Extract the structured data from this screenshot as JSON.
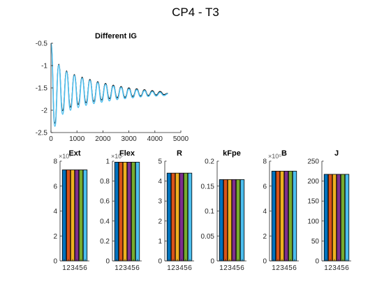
{
  "figure": {
    "suptitle": "CP4 - T3"
  },
  "chart_data": [
    {
      "type": "line",
      "title": "Different IG",
      "xlabel": "",
      "ylabel": "",
      "xlim": [
        0,
        5000
      ],
      "ylim": [
        -2.5,
        -0.5
      ],
      "xticks": [
        0,
        1000,
        2000,
        3000,
        4000,
        5000
      ],
      "yticks": [
        -2.5,
        -2,
        -1.5,
        -1,
        -0.5
      ],
      "xtick_labels": [
        "0",
        "1000",
        "2000",
        "3000",
        "4000",
        "5000"
      ],
      "ytick_labels": [
        "-2.5",
        "-2",
        "-1.5",
        "-1",
        "-0.5"
      ],
      "grid": false,
      "series": [
        {
          "color": "#000000",
          "x": [
            0,
            150,
            300,
            450,
            600,
            750,
            900,
            1050,
            1200,
            1350,
            1500,
            1650,
            1800,
            1950,
            2100,
            2250,
            2400,
            2550,
            2700,
            2850,
            3000,
            3150,
            3300,
            3450,
            3600,
            3750,
            3900,
            4050,
            4200,
            4350,
            4500
          ],
          "y": [
            -0.5,
            -2.29,
            -0.97,
            -2.01,
            -1.12,
            -1.93,
            -1.2,
            -1.87,
            -1.26,
            -1.83,
            -1.31,
            -1.8,
            -1.36,
            -1.77,
            -1.4,
            -1.74,
            -1.44,
            -1.72,
            -1.47,
            -1.71,
            -1.5,
            -1.69,
            -1.52,
            -1.68,
            -1.54,
            -1.67,
            -1.56,
            -1.66,
            -1.58,
            -1.65,
            -1.62
          ]
        },
        {
          "color": "#4DBEEE",
          "x": [
            0,
            150,
            300,
            450,
            600,
            750,
            900,
            1050,
            1200,
            1350,
            1500,
            1650,
            1800,
            1950,
            2100,
            2250,
            2400,
            2550,
            2700,
            2850,
            3000,
            3150,
            3300,
            3450,
            3600,
            3750,
            3900,
            4050,
            4200,
            4350,
            4500
          ],
          "y": [
            -0.5,
            -2.36,
            -0.99,
            -2.09,
            -1.14,
            -2.0,
            -1.22,
            -1.94,
            -1.28,
            -1.89,
            -1.33,
            -1.85,
            -1.38,
            -1.82,
            -1.42,
            -1.79,
            -1.46,
            -1.76,
            -1.49,
            -1.74,
            -1.52,
            -1.72,
            -1.54,
            -1.7,
            -1.56,
            -1.69,
            -1.58,
            -1.68,
            -1.6,
            -1.67,
            -1.63
          ]
        }
      ]
    },
    {
      "type": "bar",
      "title": "Ext",
      "exponent": "×10⁷",
      "ylim": [
        0,
        8
      ],
      "yticks": [
        0,
        2,
        4,
        6,
        8
      ],
      "ytick_labels": [
        "0",
        "2",
        "4",
        "6",
        "8"
      ],
      "categories": [
        "1",
        "2",
        "3",
        "4",
        "5",
        "6"
      ],
      "values": [
        7.3,
        7.3,
        7.3,
        7.3,
        7.3,
        7.3
      ]
    },
    {
      "type": "bar",
      "title": "Flex",
      "exponent": "×10⁷",
      "ylim": [
        0,
        1
      ],
      "yticks": [
        0,
        0.2,
        0.4,
        0.6,
        0.8,
        1
      ],
      "ytick_labels": [
        "0",
        "0.2",
        "0.4",
        "0.6",
        "0.8",
        "1"
      ],
      "categories": [
        "1",
        "2",
        "3",
        "4",
        "5",
        "6"
      ],
      "values": [
        0.99,
        0.99,
        0.99,
        0.99,
        0.99,
        0.99
      ]
    },
    {
      "type": "bar",
      "title": "R",
      "exponent": "",
      "ylim": [
        0,
        5
      ],
      "yticks": [
        0,
        1,
        2,
        3,
        4,
        5
      ],
      "ytick_labels": [
        "0",
        "1",
        "2",
        "3",
        "4",
        "5"
      ],
      "categories": [
        "1",
        "2",
        "3",
        "4",
        "5",
        "6"
      ],
      "values": [
        4.4,
        4.4,
        4.4,
        4.4,
        4.4,
        4.4
      ]
    },
    {
      "type": "bar",
      "title": "kFpe",
      "exponent": "",
      "ylim": [
        0,
        0.2
      ],
      "yticks": [
        0,
        0.05,
        0.1,
        0.15,
        0.2
      ],
      "ytick_labels": [
        "0",
        "0.05",
        "0.1",
        "0.15",
        "0.2"
      ],
      "categories": [
        "1",
        "2",
        "3",
        "4",
        "5",
        "6"
      ],
      "values": [
        0.163,
        0.163,
        0.163,
        0.163,
        0.163,
        0.163
      ]
    },
    {
      "type": "bar",
      "title": "B",
      "exponent": "×10⁵",
      "ylim": [
        0,
        8
      ],
      "yticks": [
        0,
        2,
        4,
        6,
        8
      ],
      "ytick_labels": [
        "0",
        "2",
        "4",
        "6",
        "8"
      ],
      "categories": [
        "1",
        "2",
        "3",
        "4",
        "5",
        "6"
      ],
      "values": [
        7.2,
        7.2,
        7.2,
        7.2,
        7.2,
        7.2
      ]
    },
    {
      "type": "bar",
      "title": "J",
      "exponent": "",
      "ylim": [
        0,
        250
      ],
      "yticks": [
        0,
        50,
        100,
        150,
        200,
        250
      ],
      "ytick_labels": [
        "0",
        "50",
        "100",
        "150",
        "200",
        "250"
      ],
      "categories": [
        "1",
        "2",
        "3",
        "4",
        "5",
        "6"
      ],
      "values": [
        217,
        217,
        217,
        217,
        217,
        217
      ]
    }
  ],
  "bar_colors": [
    "#0072BD",
    "#D95319",
    "#EDB120",
    "#7E2F8E",
    "#77AC30",
    "#4DBEEE"
  ]
}
